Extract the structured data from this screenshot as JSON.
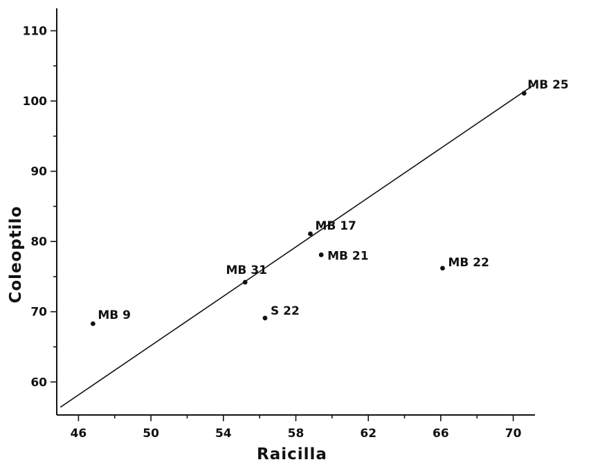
{
  "chart_data": {
    "type": "scatter",
    "title": "",
    "xlabel": "Raicilla",
    "ylabel": "Coleoptilo",
    "xlim": [
      44.8,
      71.2
    ],
    "ylim": [
      55.3,
      113.2
    ],
    "xticks_major": [
      46,
      50,
      54,
      58,
      62,
      66,
      70
    ],
    "xticks_minor": [
      48,
      52,
      56,
      60,
      64,
      68
    ],
    "yticks_major": [
      60,
      70,
      80,
      90,
      100,
      110
    ],
    "yticks_minor": [
      65,
      75,
      85,
      95,
      105
    ],
    "grid": false,
    "points": [
      {
        "label": "MB 9",
        "x": 46.8,
        "y": 68.3
      },
      {
        "label": "MB 31",
        "x": 55.2,
        "y": 74.2
      },
      {
        "label": "S 22",
        "x": 56.3,
        "y": 69.1
      },
      {
        "label": "MB 17",
        "x": 58.8,
        "y": 81.1
      },
      {
        "label": "MB 21",
        "x": 59.4,
        "y": 78.1
      },
      {
        "label": "MB 22",
        "x": 66.1,
        "y": 76.2
      },
      {
        "label": "MB 25",
        "x": 70.6,
        "y": 101.1
      }
    ],
    "regression_line": {
      "x": [
        45.0,
        71.2
      ],
      "y": [
        56.4,
        102.4
      ]
    }
  }
}
